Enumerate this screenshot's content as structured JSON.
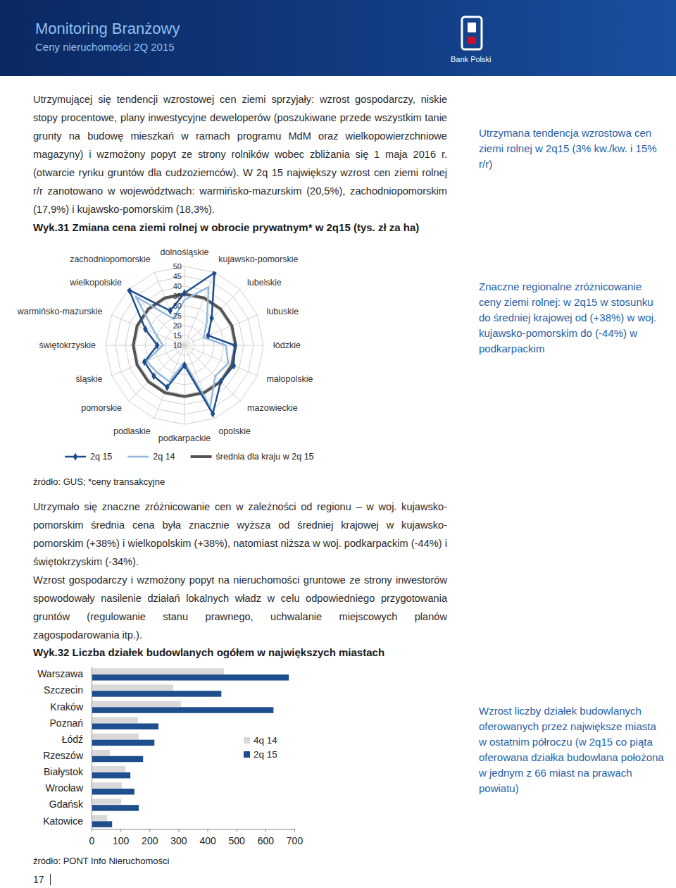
{
  "header": {
    "title": "Monitoring Branżowy",
    "subtitle": "Ceny nieruchomości 2Q 2015",
    "logo_text": "Bank Polski"
  },
  "paragraphs": [
    "Utrzymującej się tendencji wzrostowej cen ziemi sprzyjały: wzrost gospodarczy, niskie stopy procentowe, plany inwestycyjne deweloperów (poszukiwane przede wszystkim tanie grunty na budowę mieszkań w ramach programu MdM oraz wielkopowierzchniowe magazyny) i wzmożony popyt ze strony rolników wobec zbliżania się 1 maja 2016 r. (otwarcie rynku gruntów dla cudzoziemców). W 2q 15 największy wzrost cen ziemi rolnej r/r zanotowano w województwach: warmińsko-mazurskim (20,5%), zachodniopomorskim (17,9%) i kujawsko-pomorskim (18,3%).",
    "Utrzymało się znaczne zróżnicowanie cen w zależności od regionu – w woj. kujawsko-pomorskim średnia cena była znacznie wyższa od średniej krajowej w kujawsko-pomorskim (+38%) i wielkopolskim (+38%), natomiast niższa w woj. podkarpackim (-44%) i świętokrzyskim (-34%).",
    "Wzrost gospodarczy i wzmożony popyt na nieruchomości gruntowe ze strony inwestorów spowodowały nasilenie działań lokalnych władz w celu odpowiedniego przygotowania gruntów (regulowanie stanu prawnego, uchwalanie miejscowych planów zagospodarowania itp.)."
  ],
  "sidenotes": [
    "Utrzymana tendencja wzrostowa cen ziemi rolnej w 2q15 (3% kw./kw. i 15% r/r)",
    "Znaczne regionalne zróżnicowanie ceny ziemi rolnej: w 2q15 w stosunku do średniej krajowej od (+38%) w woj. kujawsko-pomorskim do (-44%) w podkarpackim",
    "Wzrost liczby działek budowlanych oferowanych przez największe miasta w ostatnim półroczu (w 2q15 co piąta oferowana działka budowlana położona w jednym z 66 miast na prawach powiatu)"
  ],
  "page_number": 17,
  "chart_data": [
    {
      "type": "radar",
      "title": "Wyk.31 Zmiana cena ziemi rolnej w obrocie prywatnym* w 2q15 (tys. zł za ha)",
      "source": "źródło: GUS; *ceny transakcyjne",
      "categories": [
        "dolnośląskie",
        "kujawsko-pomorskie",
        "lubelskie",
        "lubuskie",
        "łódzkie",
        "małopolskie",
        "mazowieckie",
        "opolskie",
        "podkarpackie",
        "podlaskie",
        "pomorskie",
        "śląskie",
        "świętokrzyskie",
        "warmińsko-mazurskie",
        "wielkopolskie",
        "zachodniopomorskie"
      ],
      "series": [
        {
          "name": "2q 15",
          "color": "#1f4e8c",
          "marker": "diamond",
          "values": [
            36.5,
            49.7,
            29.5,
            23.0,
            35.5,
            37.0,
            36.0,
            47.5,
            20.2,
            33.0,
            32.0,
            32.0,
            23.8,
            31.5,
            49.7,
            29.0
          ]
        },
        {
          "name": "2q 14",
          "color": "#93b8dd",
          "marker": "none",
          "values": [
            33.0,
            42.0,
            26.0,
            20.5,
            31.0,
            34.0,
            32.0,
            44.0,
            18.5,
            30.0,
            29.5,
            31.0,
            21.0,
            26.1,
            45.0,
            24.6
          ]
        },
        {
          "name": "średnia dla kraju w 2q 15",
          "color": "#555555",
          "marker": "none",
          "values": [
            36.0,
            36.0,
            36.0,
            36.0,
            36.0,
            36.0,
            36.0,
            36.0,
            36.0,
            36.0,
            36.0,
            36.0,
            36.0,
            36.0,
            36.0,
            36.0
          ]
        }
      ],
      "ylim": [
        10,
        50
      ],
      "yticks": [
        10,
        15,
        20,
        25,
        30,
        35,
        40,
        45,
        50
      ],
      "grid": true,
      "legend": "bottom"
    },
    {
      "type": "bar",
      "orientation": "horizontal",
      "title": "Wyk.32 Liczba działek budowlanych ogółem w największych miastach",
      "source": "źródło: PONT Info Nieruchomości",
      "categories": [
        "Warszawa",
        "Szczecin",
        "Kraków",
        "Poznań",
        "Łódź",
        "Rzeszów",
        "Białystok",
        "Wrocław",
        "Gdańsk",
        "Katowice"
      ],
      "series": [
        {
          "name": "4q 14",
          "color": "#d9d9d9",
          "values": [
            457,
            282,
            309,
            161,
            163,
            63,
            117,
            105,
            102,
            54
          ]
        },
        {
          "name": "2q 15",
          "color": "#1f4e8c",
          "values": [
            681,
            448,
            628,
            231,
            217,
            178,
            134,
            148,
            163,
            71
          ]
        }
      ],
      "xlim": [
        0,
        700
      ],
      "xticks": [
        0,
        100,
        200,
        300,
        400,
        500,
        600,
        700
      ],
      "legend": "right"
    }
  ]
}
